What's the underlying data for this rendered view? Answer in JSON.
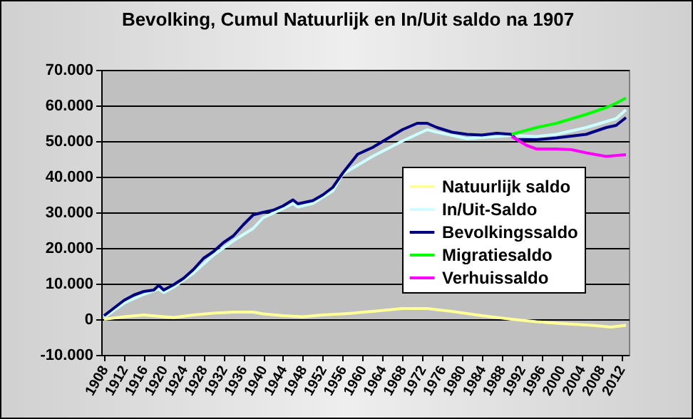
{
  "chart_data": {
    "type": "line",
    "title": "Bevolking, Cumul Natuurlijk en In/Uit saldo na 1907",
    "xlim": [
      1908,
      2013
    ],
    "xticks": [
      1908,
      1912,
      1916,
      1920,
      1924,
      1928,
      1932,
      1936,
      1940,
      1944,
      1948,
      1952,
      1956,
      1960,
      1964,
      1968,
      1972,
      1976,
      1980,
      1984,
      1988,
      1992,
      1996,
      2000,
      2004,
      2008,
      2012
    ],
    "ylim": [
      -10000,
      70000
    ],
    "yticks": [
      {
        "value": -10000,
        "label": "-10.000"
      },
      {
        "value": 0,
        "label": "0"
      },
      {
        "value": 10000,
        "label": "10.000"
      },
      {
        "value": 20000,
        "label": "20.000"
      },
      {
        "value": 30000,
        "label": "30.000"
      },
      {
        "value": 40000,
        "label": "40.000"
      },
      {
        "value": 50000,
        "label": "50.000"
      },
      {
        "value": 60000,
        "label": "60.000"
      },
      {
        "value": 70000,
        "label": "70.000"
      }
    ],
    "grid": "y",
    "legend": "right",
    "marker": "none",
    "line_style": "solid",
    "series": [
      {
        "name": "Natuurlijk saldo",
        "color": "#ffff99",
        "x": [
          1908,
          1912,
          1916,
          1920,
          1922,
          1926,
          1930,
          1934,
          1938,
          1940,
          1944,
          1948,
          1952,
          1956,
          1958,
          1962,
          1968,
          1973,
          1978,
          1984,
          1990,
          1995,
          2000,
          2006,
          2010,
          2013
        ],
        "values": [
          0,
          700,
          1200,
          700,
          500,
          1200,
          1700,
          2000,
          2000,
          1500,
          1000,
          700,
          1200,
          1500,
          1700,
          2200,
          3000,
          3000,
          2200,
          1000,
          0,
          -700,
          -1200,
          -1700,
          -2200,
          -1700
        ]
      },
      {
        "name": "In/Uit-Saldo",
        "color": "#ccffff",
        "x": [
          1908,
          1912,
          1916,
          1919,
          1920,
          1922,
          1926,
          1930,
          1934,
          1938,
          1940,
          1944,
          1946,
          1947,
          1950,
          1954,
          1956,
          1962,
          1968,
          1973,
          1975,
          1981,
          1987,
          1990,
          1995,
          1999,
          2005,
          2011,
          2013
        ],
        "values": [
          500,
          4500,
          7000,
          8500,
          7500,
          9000,
          13000,
          18000,
          22000,
          25500,
          28500,
          31000,
          32500,
          31500,
          32500,
          36000,
          40700,
          45700,
          50000,
          53200,
          52500,
          50700,
          51300,
          51600,
          51300,
          51900,
          53800,
          56300,
          58800
        ]
      },
      {
        "name": "Bevolkingssaldo",
        "color": "#000080",
        "x": [
          1908,
          1912,
          1914,
          1916,
          1918,
          1919,
          1920,
          1922,
          1924,
          1926,
          1928,
          1930,
          1932,
          1934,
          1936,
          1938,
          1940,
          1942,
          1944,
          1946,
          1947,
          1950,
          1952,
          1954,
          1956,
          1959,
          1962,
          1965,
          1968,
          1971,
          1973,
          1975,
          1978,
          1981,
          1984,
          1987,
          1990,
          1991,
          1995,
          1999,
          2005,
          2009,
          2011,
          2013
        ],
        "values": [
          1000,
          5300,
          6800,
          7800,
          8200,
          9500,
          8200,
          9700,
          11500,
          14000,
          17100,
          19000,
          21500,
          23400,
          26500,
          29300,
          30000,
          30600,
          31800,
          33500,
          32400,
          33300,
          34900,
          37000,
          41000,
          46300,
          48200,
          50700,
          53200,
          55000,
          55000,
          53800,
          52500,
          51900,
          51700,
          52200,
          51900,
          50400,
          50400,
          50900,
          51900,
          53800,
          54400,
          56600
        ]
      },
      {
        "name": "Migratiesaldo",
        "color": "#00ff00",
        "x": [
          1990,
          1995,
          1999,
          2005,
          2009,
          2011,
          2013
        ],
        "values": [
          51900,
          53800,
          55000,
          57500,
          59400,
          60600,
          62100
        ]
      },
      {
        "name": "Verhuissaldo",
        "color": "#ff00ff",
        "x": [
          1990,
          1993,
          1995,
          1999,
          2002,
          2005,
          2009,
          2013
        ],
        "values": [
          51300,
          48800,
          47800,
          47800,
          47600,
          46700,
          45700,
          46200
        ]
      }
    ]
  }
}
